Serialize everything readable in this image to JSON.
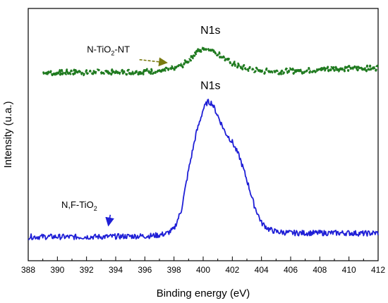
{
  "chart_data": {
    "type": "line",
    "xlabel": "Binding energy (eV)",
    "ylabel": "Intensity (u.a.)",
    "xlim": [
      388,
      412
    ],
    "xticks": [
      388,
      390,
      392,
      394,
      396,
      398,
      400,
      402,
      404,
      406,
      408,
      410,
      412
    ],
    "ylim": [
      0,
      1
    ],
    "yticks_shown": false,
    "grid": false,
    "legend": "none",
    "series": [
      {
        "name": "N-TiO2-NT",
        "color": "#1f7a1f",
        "style": "dashed",
        "x": [
          389.0,
          390.0,
          391.0,
          392.0,
          393.0,
          394.0,
          395.0,
          396.0,
          397.0,
          397.5,
          398.0,
          398.5,
          399.0,
          399.5,
          400.0,
          400.5,
          401.0,
          401.5,
          402.0,
          402.5,
          403.0,
          403.5,
          404.0,
          405.0,
          406.0,
          407.0,
          408.0,
          409.0,
          410.0,
          411.0,
          412.0
        ],
        "y": [
          0.745,
          0.745,
          0.748,
          0.745,
          0.748,
          0.747,
          0.749,
          0.75,
          0.752,
          0.755,
          0.762,
          0.772,
          0.795,
          0.825,
          0.84,
          0.838,
          0.823,
          0.8,
          0.782,
          0.77,
          0.762,
          0.757,
          0.752,
          0.75,
          0.752,
          0.753,
          0.758,
          0.762,
          0.762,
          0.762,
          0.765
        ]
      },
      {
        "name": "N,F-TiO2",
        "color": "#1f1fd6",
        "style": "solid",
        "x": [
          388.0,
          389.0,
          390.0,
          391.0,
          392.0,
          393.0,
          394.0,
          395.0,
          396.0,
          396.5,
          397.0,
          397.5,
          398.0,
          398.5,
          399.0,
          399.5,
          400.0,
          400.3,
          400.6,
          401.0,
          401.5,
          402.0,
          402.5,
          403.0,
          403.5,
          404.0,
          404.5,
          405.0,
          406.0,
          407.0,
          408.0,
          409.0,
          410.0,
          411.0,
          412.0
        ],
        "y": [
          0.095,
          0.095,
          0.095,
          0.094,
          0.095,
          0.095,
          0.096,
          0.097,
          0.098,
          0.099,
          0.102,
          0.108,
          0.125,
          0.2,
          0.36,
          0.5,
          0.6,
          0.63,
          0.625,
          0.575,
          0.51,
          0.47,
          0.41,
          0.32,
          0.22,
          0.15,
          0.125,
          0.115,
          0.11,
          0.11,
          0.11,
          0.11,
          0.11,
          0.108,
          0.11
        ]
      }
    ],
    "annotations": [
      {
        "text": "N1s",
        "x": 400.5,
        "y": 0.9,
        "arrow": false
      },
      {
        "text": "N1s",
        "x": 400.5,
        "y": 0.68,
        "arrow": false
      },
      {
        "text": "N-TiO",
        "sub": "2",
        "suffix": "-NT",
        "x": 393.5,
        "y": 0.825,
        "arrow": true,
        "arrow_to_x": 397.5,
        "arrow_to_y": 0.785,
        "color": "#7a7a10"
      },
      {
        "text": "N,F-TiO",
        "sub": "2",
        "suffix": "",
        "x": 391.5,
        "y": 0.21,
        "arrow": true,
        "arrow_to_x": 393.5,
        "arrow_to_y": 0.14,
        "color": "#1f1fd6"
      }
    ]
  }
}
